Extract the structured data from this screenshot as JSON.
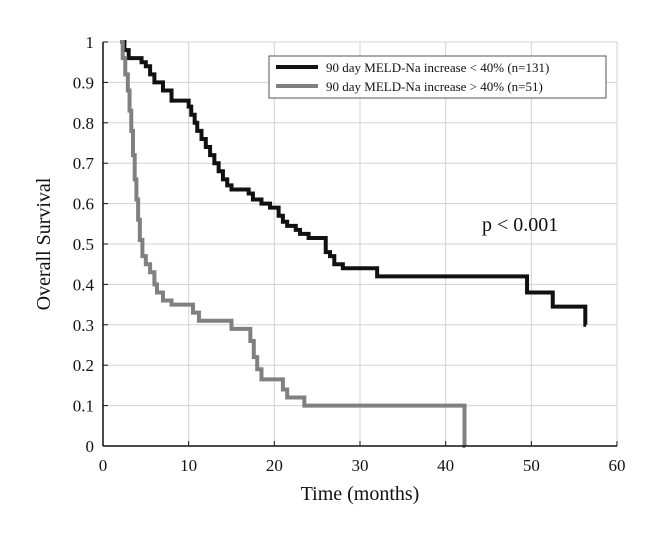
{
  "chart_data": {
    "type": "line",
    "xlabel": "Time (months)",
    "ylabel": "Overall Survival",
    "xlim": [
      0,
      60
    ],
    "ylim": [
      0,
      1
    ],
    "xticks": [
      0,
      10,
      20,
      30,
      40,
      50,
      60
    ],
    "yticks": [
      0,
      0.1,
      0.2,
      0.3,
      0.4,
      0.5,
      0.6,
      0.7,
      0.8,
      0.9,
      1
    ],
    "ytick_labels": [
      "0",
      "0.1",
      "0.2",
      "0.3",
      "0.4",
      "0.5",
      "0.6",
      "0.7",
      "0.8",
      "0.9",
      "1"
    ],
    "grid": true,
    "legend_position": "top-right",
    "annotation": "p < 0.001",
    "series": [
      {
        "name": "90 day MELD-Na increase < 40% (n=131)",
        "color": "#111111",
        "step": true,
        "points": [
          [
            2,
            1.0
          ],
          [
            2.5,
            0.98
          ],
          [
            3,
            0.96
          ],
          [
            4.5,
            0.95
          ],
          [
            5,
            0.94
          ],
          [
            5.5,
            0.92
          ],
          [
            6,
            0.9
          ],
          [
            7,
            0.88
          ],
          [
            8,
            0.855
          ],
          [
            10,
            0.84
          ],
          [
            10.3,
            0.82
          ],
          [
            10.7,
            0.8
          ],
          [
            11,
            0.78
          ],
          [
            11.5,
            0.76
          ],
          [
            12,
            0.74
          ],
          [
            12.5,
            0.72
          ],
          [
            13,
            0.7
          ],
          [
            13.5,
            0.68
          ],
          [
            14,
            0.66
          ],
          [
            14.5,
            0.645
          ],
          [
            15,
            0.635
          ],
          [
            17,
            0.625
          ],
          [
            17.5,
            0.61
          ],
          [
            18.5,
            0.6
          ],
          [
            19.5,
            0.59
          ],
          [
            20.5,
            0.57
          ],
          [
            21,
            0.555
          ],
          [
            21.5,
            0.545
          ],
          [
            22.5,
            0.535
          ],
          [
            23,
            0.525
          ],
          [
            24,
            0.515
          ],
          [
            26,
            0.48
          ],
          [
            26.5,
            0.47
          ],
          [
            27,
            0.45
          ],
          [
            28,
            0.44
          ],
          [
            32,
            0.42
          ],
          [
            49.5,
            0.38
          ],
          [
            52.5,
            0.345
          ],
          [
            56.3,
            0.3
          ],
          [
            56.4,
            0.3
          ]
        ]
      },
      {
        "name": "90 day MELD-Na increase > 40% (n=51)",
        "color": "#808080",
        "step": true,
        "points": [
          [
            2,
            1.0
          ],
          [
            2.3,
            0.96
          ],
          [
            2.6,
            0.92
          ],
          [
            2.9,
            0.88
          ],
          [
            3.1,
            0.83
          ],
          [
            3.3,
            0.78
          ],
          [
            3.5,
            0.72
          ],
          [
            3.7,
            0.66
          ],
          [
            3.9,
            0.61
          ],
          [
            4.1,
            0.56
          ],
          [
            4.3,
            0.51
          ],
          [
            4.6,
            0.47
          ],
          [
            5,
            0.45
          ],
          [
            5.5,
            0.43
          ],
          [
            6,
            0.4
          ],
          [
            6.3,
            0.38
          ],
          [
            7,
            0.36
          ],
          [
            8,
            0.35
          ],
          [
            10.5,
            0.33
          ],
          [
            11.2,
            0.31
          ],
          [
            15,
            0.29
          ],
          [
            17.2,
            0.26
          ],
          [
            17.6,
            0.22
          ],
          [
            18,
            0.19
          ],
          [
            18.5,
            0.165
          ],
          [
            21,
            0.14
          ],
          [
            21.5,
            0.12
          ],
          [
            23.5,
            0.1
          ],
          [
            42.2,
            0.0
          ],
          [
            42.3,
            0.0
          ]
        ]
      }
    ]
  }
}
